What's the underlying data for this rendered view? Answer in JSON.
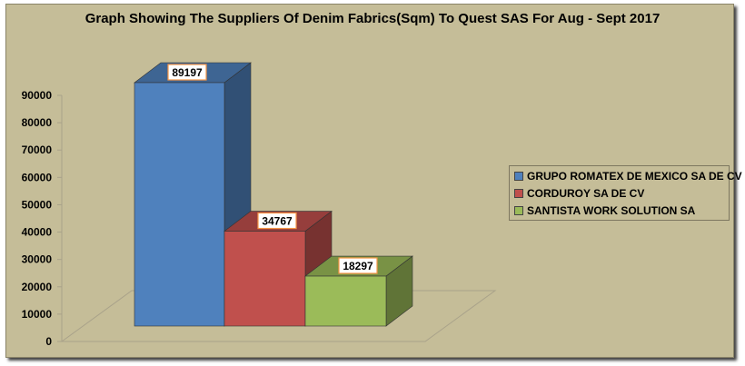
{
  "chart_data": {
    "type": "bar",
    "title": "Graph Showing The Suppliers Of Denim Fabrics(Sqm) To Quest SAS For Aug - Sept 2017",
    "categories": [
      "GRUPO ROMATEX DE MEXICO SA DE CV",
      "CORDUROY SA DE CV",
      "SANTISTA WORK SOLUTION SA"
    ],
    "values": [
      89197,
      34767,
      18297
    ],
    "colors": [
      "#4f81bd",
      "#c0504d",
      "#9bbb59"
    ],
    "data_labels": [
      "89197",
      "34767",
      "18297"
    ],
    "yticks": [
      "0",
      "10000",
      "20000",
      "30000",
      "40000",
      "50000",
      "60000",
      "70000",
      "80000",
      "90000"
    ],
    "ylim": [
      0,
      90000
    ],
    "xlabel": "",
    "ylabel": "",
    "legend_position": "right",
    "style": "3d-column"
  }
}
